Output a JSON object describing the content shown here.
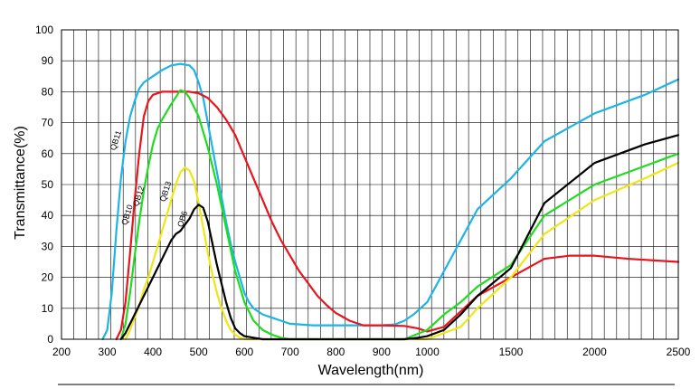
{
  "chart_data": {
    "type": "line",
    "xlabel": "Wavelength(nm)",
    "ylabel": "Transmittance(%)",
    "ylim": [
      0,
      100
    ],
    "y_ticks": [
      "0",
      "10",
      "20",
      "30",
      "40",
      "50",
      "60",
      "70",
      "80",
      "90",
      "100"
    ],
    "x_ticks": [
      "200",
      "300",
      "400",
      "500",
      "600",
      "700",
      "800",
      "900",
      "1000",
      "1500",
      "2000",
      "2500"
    ],
    "grid": true,
    "series": [
      {
        "name": "QB11",
        "color": "#1EB4E6",
        "points": [
          [
            290,
            0
          ],
          [
            300,
            3
          ],
          [
            310,
            15
          ],
          [
            320,
            35
          ],
          [
            330,
            52
          ],
          [
            340,
            64
          ],
          [
            350,
            72
          ],
          [
            360,
            77
          ],
          [
            370,
            81
          ],
          [
            380,
            83
          ],
          [
            390,
            84
          ],
          [
            400,
            85
          ],
          [
            420,
            87
          ],
          [
            440,
            88.5
          ],
          [
            460,
            89
          ],
          [
            480,
            88.5
          ],
          [
            490,
            87
          ],
          [
            500,
            83
          ],
          [
            510,
            78
          ],
          [
            520,
            70
          ],
          [
            530,
            62
          ],
          [
            540,
            54
          ],
          [
            550,
            46
          ],
          [
            560,
            38
          ],
          [
            570,
            31
          ],
          [
            580,
            25
          ],
          [
            590,
            20
          ],
          [
            600,
            15
          ],
          [
            610,
            12
          ],
          [
            620,
            10
          ],
          [
            640,
            8
          ],
          [
            660,
            7
          ],
          [
            680,
            6
          ],
          [
            700,
            5
          ],
          [
            750,
            4.5
          ],
          [
            800,
            4.5
          ],
          [
            850,
            4.5
          ],
          [
            900,
            4.5
          ],
          [
            930,
            4.8
          ],
          [
            950,
            6
          ],
          [
            970,
            8
          ],
          [
            1000,
            12
          ],
          [
            1100,
            22
          ],
          [
            1200,
            32
          ],
          [
            1300,
            42
          ],
          [
            1500,
            52
          ],
          [
            1700,
            64
          ],
          [
            2000,
            73
          ],
          [
            2300,
            79
          ],
          [
            2500,
            84
          ]
        ]
      },
      {
        "name": "QB10",
        "color": "#E8141E",
        "points": [
          [
            320,
            0
          ],
          [
            330,
            3
          ],
          [
            340,
            12
          ],
          [
            350,
            28
          ],
          [
            360,
            45
          ],
          [
            370,
            60
          ],
          [
            380,
            72
          ],
          [
            390,
            77
          ],
          [
            400,
            79
          ],
          [
            420,
            80
          ],
          [
            450,
            80
          ],
          [
            480,
            80
          ],
          [
            500,
            79.5
          ],
          [
            520,
            78
          ],
          [
            540,
            75
          ],
          [
            560,
            71
          ],
          [
            580,
            66
          ],
          [
            600,
            59
          ],
          [
            620,
            52
          ],
          [
            640,
            45
          ],
          [
            660,
            38
          ],
          [
            680,
            32
          ],
          [
            700,
            27
          ],
          [
            720,
            22
          ],
          [
            740,
            18
          ],
          [
            760,
            14
          ],
          [
            780,
            11
          ],
          [
            800,
            8.5
          ],
          [
            830,
            6
          ],
          [
            860,
            4.5
          ],
          [
            900,
            4.5
          ],
          [
            950,
            4.3
          ],
          [
            980,
            3.5
          ],
          [
            1000,
            2.5
          ],
          [
            1100,
            4
          ],
          [
            1200,
            9
          ],
          [
            1300,
            14
          ],
          [
            1500,
            20
          ],
          [
            1700,
            26
          ],
          [
            1850,
            27
          ],
          [
            2000,
            27
          ],
          [
            2200,
            26
          ],
          [
            2500,
            25
          ]
        ]
      },
      {
        "name": "QB12",
        "color": "#1EDC1E",
        "points": [
          [
            330,
            0
          ],
          [
            340,
            5
          ],
          [
            350,
            15
          ],
          [
            360,
            27
          ],
          [
            370,
            38
          ],
          [
            380,
            48
          ],
          [
            390,
            56
          ],
          [
            400,
            63
          ],
          [
            410,
            68
          ],
          [
            420,
            71
          ],
          [
            440,
            76
          ],
          [
            460,
            80.5
          ],
          [
            470,
            80
          ],
          [
            480,
            78
          ],
          [
            500,
            72
          ],
          [
            520,
            62
          ],
          [
            540,
            50
          ],
          [
            560,
            36
          ],
          [
            580,
            22
          ],
          [
            600,
            12
          ],
          [
            620,
            6
          ],
          [
            640,
            3
          ],
          [
            660,
            1.5
          ],
          [
            680,
            0.5
          ],
          [
            700,
            0
          ],
          [
            950,
            0
          ],
          [
            1000,
            3
          ],
          [
            1100,
            8
          ],
          [
            1200,
            12
          ],
          [
            1300,
            17
          ],
          [
            1500,
            24
          ],
          [
            1700,
            40
          ],
          [
            2000,
            50
          ],
          [
            2300,
            56
          ],
          [
            2500,
            60
          ]
        ]
      },
      {
        "name": "QB13",
        "color": "#F0E614",
        "points": [
          [
            340,
            0
          ],
          [
            350,
            3
          ],
          [
            360,
            7
          ],
          [
            370,
            11
          ],
          [
            380,
            16
          ],
          [
            390,
            20
          ],
          [
            400,
            25
          ],
          [
            410,
            30
          ],
          [
            420,
            35
          ],
          [
            430,
            40
          ],
          [
            440,
            45
          ],
          [
            450,
            50
          ],
          [
            460,
            54
          ],
          [
            470,
            55.5
          ],
          [
            480,
            54.5
          ],
          [
            490,
            51
          ],
          [
            500,
            44
          ],
          [
            510,
            36
          ],
          [
            520,
            28
          ],
          [
            530,
            21
          ],
          [
            540,
            15
          ],
          [
            550,
            10
          ],
          [
            560,
            6
          ],
          [
            570,
            3
          ],
          [
            580,
            1.5
          ],
          [
            590,
            0.5
          ],
          [
            600,
            0
          ],
          [
            1000,
            0
          ],
          [
            1200,
            4
          ],
          [
            1300,
            10
          ],
          [
            1500,
            20
          ],
          [
            1700,
            34
          ],
          [
            2000,
            45
          ],
          [
            2300,
            52
          ],
          [
            2500,
            57
          ]
        ]
      },
      {
        "name": "QB6",
        "color": "#000000",
        "points": [
          [
            330,
            0
          ],
          [
            340,
            2
          ],
          [
            350,
            5
          ],
          [
            360,
            8
          ],
          [
            370,
            11
          ],
          [
            380,
            14
          ],
          [
            390,
            17
          ],
          [
            400,
            20
          ],
          [
            410,
            23
          ],
          [
            420,
            26
          ],
          [
            430,
            29
          ],
          [
            440,
            32
          ],
          [
            450,
            34
          ],
          [
            460,
            35
          ],
          [
            470,
            37
          ],
          [
            480,
            39
          ],
          [
            490,
            42
          ],
          [
            500,
            43.5
          ],
          [
            510,
            42.5
          ],
          [
            520,
            38
          ],
          [
            530,
            31
          ],
          [
            540,
            24
          ],
          [
            550,
            18
          ],
          [
            560,
            12
          ],
          [
            570,
            7
          ],
          [
            580,
            3.5
          ],
          [
            590,
            2
          ],
          [
            600,
            1
          ],
          [
            620,
            0.5
          ],
          [
            640,
            0
          ],
          [
            950,
            0
          ],
          [
            980,
            0.5
          ],
          [
            1000,
            1
          ],
          [
            1100,
            3
          ],
          [
            1200,
            8
          ],
          [
            1300,
            14
          ],
          [
            1500,
            23
          ],
          [
            1700,
            44
          ],
          [
            2000,
            57
          ],
          [
            2300,
            63
          ],
          [
            2500,
            66
          ]
        ]
      }
    ],
    "curve_labels": [
      {
        "text": "QB11",
        "series": "QB11"
      },
      {
        "text": "QB10",
        "series": "QB10"
      },
      {
        "text": "QB12",
        "series": "QB12"
      },
      {
        "text": "QB13",
        "series": "QB13"
      },
      {
        "text": "QB6",
        "series": "QB6"
      }
    ]
  }
}
